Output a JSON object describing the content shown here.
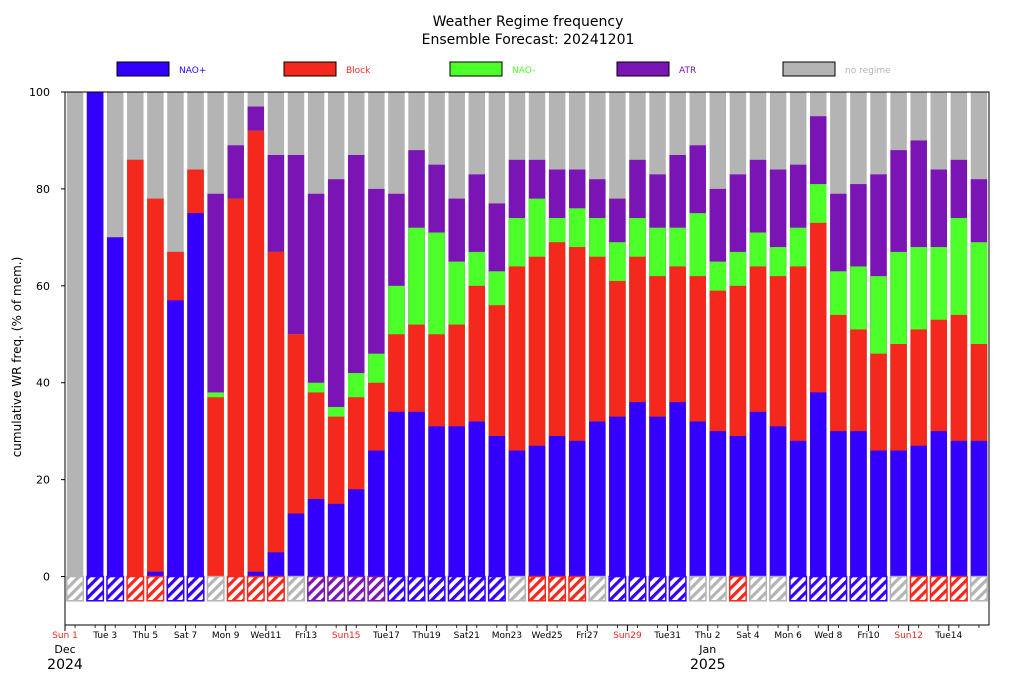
{
  "chart_data": {
    "type": "bar",
    "stacked": true,
    "title": "Weather Regime frequency",
    "subtitle": "Ensemble Forecast: 20241201",
    "ylabel": "cumulative WR freq. (% of mem.)",
    "ylim": [
      -10,
      100
    ],
    "yticks": [
      0,
      20,
      40,
      60,
      80,
      100
    ],
    "grid": false,
    "legend_position": "top",
    "regimes": [
      {
        "key": "nao_plus",
        "name": "NAO+",
        "color": "#3300ff"
      },
      {
        "key": "block",
        "name": "Block",
        "color": "#f5281e"
      },
      {
        "key": "nao_minus",
        "name": "NAO-",
        "color": "#4dff28"
      },
      {
        "key": "atr",
        "name": "ATR",
        "color": "#7a14b4"
      },
      {
        "key": "none",
        "name": "no regime",
        "color": "#b4b4b4"
      }
    ],
    "x_tick_labels": [
      {
        "day": 0,
        "text": "Sun 1",
        "color": "#e8281e"
      },
      {
        "day": 2,
        "text": "Tue 3",
        "color": "#000000"
      },
      {
        "day": 4,
        "text": "Thu 5",
        "color": "#000000"
      },
      {
        "day": 6,
        "text": "Sat 7",
        "color": "#000000"
      },
      {
        "day": 8,
        "text": "Mon 9",
        "color": "#000000"
      },
      {
        "day": 10,
        "text": "Wed11",
        "color": "#000000"
      },
      {
        "day": 12,
        "text": "Fri13",
        "color": "#000000"
      },
      {
        "day": 14,
        "text": "Sun15",
        "color": "#e8281e"
      },
      {
        "day": 16,
        "text": "Tue17",
        "color": "#000000"
      },
      {
        "day": 18,
        "text": "Thu19",
        "color": "#000000"
      },
      {
        "day": 20,
        "text": "Sat21",
        "color": "#000000"
      },
      {
        "day": 22,
        "text": "Mon23",
        "color": "#000000"
      },
      {
        "day": 24,
        "text": "Wed25",
        "color": "#000000"
      },
      {
        "day": 26,
        "text": "Fri27",
        "color": "#000000"
      },
      {
        "day": 28,
        "text": "Sun29",
        "color": "#e8281e"
      },
      {
        "day": 30,
        "text": "Tue31",
        "color": "#000000"
      },
      {
        "day": 32,
        "text": "Thu 2",
        "color": "#000000"
      },
      {
        "day": 34,
        "text": "Sat 4",
        "color": "#000000"
      },
      {
        "day": 36,
        "text": "Mon 6",
        "color": "#000000"
      },
      {
        "day": 38,
        "text": "Wed 8",
        "color": "#000000"
      },
      {
        "day": 40,
        "text": "Fri10",
        "color": "#000000"
      },
      {
        "day": 42,
        "text": "Sun12",
        "color": "#e8281e"
      },
      {
        "day": 44,
        "text": "Tue14",
        "color": "#000000"
      }
    ],
    "month_labels": [
      {
        "day": 0,
        "text": "Dec"
      },
      {
        "day": 32,
        "text": "Jan"
      }
    ],
    "year_labels": [
      {
        "day": 0,
        "text": "2024"
      },
      {
        "day": 32,
        "text": "2025"
      }
    ],
    "dates": [
      "2024-12-01",
      "2024-12-02",
      "2024-12-03",
      "2024-12-04",
      "2024-12-05",
      "2024-12-06",
      "2024-12-07",
      "2024-12-08",
      "2024-12-09",
      "2024-12-10",
      "2024-12-11",
      "2024-12-12",
      "2024-12-13",
      "2024-12-14",
      "2024-12-15",
      "2024-12-16",
      "2024-12-17",
      "2024-12-18",
      "2024-12-19",
      "2024-12-20",
      "2024-12-21",
      "2024-12-22",
      "2024-12-23",
      "2024-12-24",
      "2024-12-25",
      "2024-12-26",
      "2024-12-27",
      "2024-12-28",
      "2024-12-29",
      "2024-12-30",
      "2024-12-31",
      "2025-01-01",
      "2025-01-02",
      "2025-01-03",
      "2025-01-04",
      "2025-01-05",
      "2025-01-06",
      "2025-01-07",
      "2025-01-08",
      "2025-01-09",
      "2025-01-10",
      "2025-01-11",
      "2025-01-12",
      "2025-01-13",
      "2025-01-14",
      "2025-01-15"
    ],
    "cumulative": {
      "nao_plus": [
        0,
        100,
        70,
        0,
        1,
        57,
        75,
        0,
        0,
        1,
        5,
        13,
        16,
        15,
        18,
        26,
        34,
        34,
        31,
        31,
        32,
        29,
        26,
        27,
        29,
        28,
        32,
        33,
        36,
        33,
        36,
        32,
        30,
        29,
        34,
        31,
        28,
        38,
        30,
        30,
        26,
        26,
        27,
        30,
        28,
        28
      ],
      "block": [
        0,
        100,
        70,
        86,
        78,
        67,
        84,
        37,
        78,
        92,
        67,
        50,
        38,
        33,
        37,
        40,
        50,
        52,
        50,
        52,
        60,
        56,
        64,
        66,
        69,
        68,
        66,
        61,
        66,
        62,
        64,
        62,
        59,
        60,
        64,
        62,
        64,
        73,
        54,
        51,
        46,
        48,
        51,
        53,
        54,
        48
      ],
      "nao_minus": [
        0,
        100,
        70,
        86,
        78,
        67,
        84,
        38,
        78,
        92,
        67,
        50,
        40,
        35,
        42,
        46,
        60,
        72,
        71,
        65,
        67,
        63,
        74,
        78,
        74,
        76,
        74,
        69,
        74,
        72,
        72,
        75,
        65,
        67,
        71,
        68,
        72,
        81,
        63,
        64,
        62,
        67,
        68,
        68,
        74,
        69
      ],
      "atr": [
        0,
        100,
        70,
        86,
        78,
        67,
        84,
        79,
        89,
        97,
        87,
        87,
        79,
        82,
        87,
        80,
        79,
        88,
        85,
        78,
        83,
        77,
        86,
        86,
        84,
        84,
        82,
        78,
        86,
        83,
        87,
        89,
        80,
        83,
        86,
        84,
        85,
        95,
        79,
        81,
        83,
        88,
        90,
        84,
        86,
        82
      ],
      "none": [
        100,
        100,
        100,
        100,
        100,
        100,
        100,
        100,
        100,
        100,
        100,
        100,
        100,
        100,
        100,
        100,
        100,
        100,
        100,
        100,
        100,
        100,
        100,
        100,
        100,
        100,
        100,
        100,
        100,
        100,
        100,
        100,
        100,
        100,
        100,
        100,
        100,
        100,
        100,
        100,
        100,
        100,
        100,
        100,
        100,
        100
      ]
    },
    "dominant_regime": [
      "none",
      "nao_plus",
      "nao_plus",
      "block",
      "block",
      "nao_plus",
      "nao_plus",
      "none",
      "block",
      "block",
      "block",
      "none",
      "atr",
      "atr",
      "atr",
      "atr",
      "nao_plus",
      "nao_plus",
      "nao_plus",
      "nao_plus",
      "nao_plus",
      "nao_plus",
      "none",
      "block",
      "block",
      "block",
      "none",
      "nao_plus",
      "nao_plus",
      "nao_plus",
      "nao_plus",
      "none",
      "none",
      "block",
      "none",
      "none",
      "nao_plus",
      "nao_plus",
      "nao_plus",
      "nao_plus",
      "nao_plus",
      "none",
      "block",
      "block",
      "block",
      "none"
    ]
  }
}
